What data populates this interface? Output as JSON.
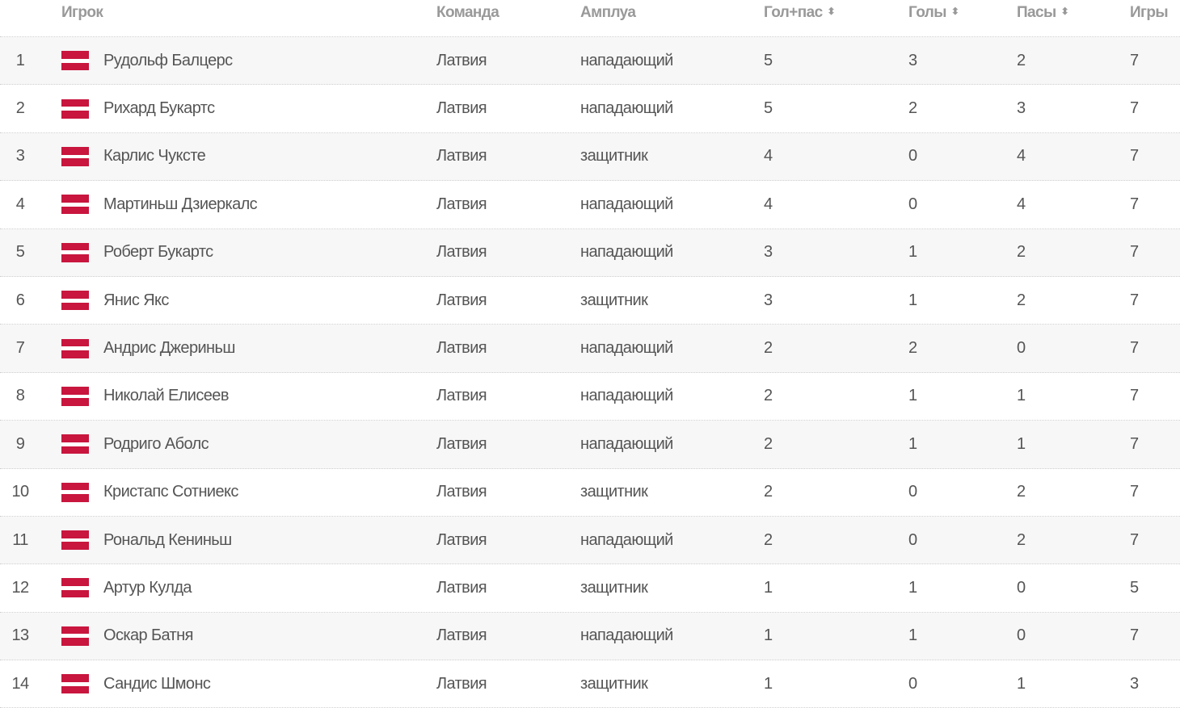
{
  "headers": {
    "player": "Игрок",
    "team": "Команда",
    "role": "Амплуа",
    "points": "Гол+пас",
    "goals": "Голы",
    "assists": "Пасы",
    "games": "Игры",
    "sort_icon": "sort-arrows-icon"
  },
  "colors": {
    "flag_red": "#c8163e",
    "flag_white": "#ffffff",
    "row_alt": "#f7f7f7"
  },
  "rows": [
    {
      "rank": "1",
      "name": "Рудольф Балцерс",
      "team": "Латвия",
      "role": "нападающий",
      "points": "5",
      "goals": "3",
      "assists": "2",
      "games": "7"
    },
    {
      "rank": "2",
      "name": "Рихард Букартс",
      "team": "Латвия",
      "role": "нападающий",
      "points": "5",
      "goals": "2",
      "assists": "3",
      "games": "7"
    },
    {
      "rank": "3",
      "name": "Карлис Чуксте",
      "team": "Латвия",
      "role": "защитник",
      "points": "4",
      "goals": "0",
      "assists": "4",
      "games": "7"
    },
    {
      "rank": "4",
      "name": "Мартиньш Дзиеркалс",
      "team": "Латвия",
      "role": "нападающий",
      "points": "4",
      "goals": "0",
      "assists": "4",
      "games": "7"
    },
    {
      "rank": "5",
      "name": "Роберт Букартс",
      "team": "Латвия",
      "role": "нападающий",
      "points": "3",
      "goals": "1",
      "assists": "2",
      "games": "7"
    },
    {
      "rank": "6",
      "name": "Янис Якс",
      "team": "Латвия",
      "role": "защитник",
      "points": "3",
      "goals": "1",
      "assists": "2",
      "games": "7"
    },
    {
      "rank": "7",
      "name": "Андрис Джериньш",
      "team": "Латвия",
      "role": "нападающий",
      "points": "2",
      "goals": "2",
      "assists": "0",
      "games": "7"
    },
    {
      "rank": "8",
      "name": "Николай Елисеев",
      "team": "Латвия",
      "role": "нападающий",
      "points": "2",
      "goals": "1",
      "assists": "1",
      "games": "7"
    },
    {
      "rank": "9",
      "name": "Родриго Аболс",
      "team": "Латвия",
      "role": "нападающий",
      "points": "2",
      "goals": "1",
      "assists": "1",
      "games": "7"
    },
    {
      "rank": "10",
      "name": "Кристапс Сотниекс",
      "team": "Латвия",
      "role": "защитник",
      "points": "2",
      "goals": "0",
      "assists": "2",
      "games": "7"
    },
    {
      "rank": "11",
      "name": "Рональд Кениньш",
      "team": "Латвия",
      "role": "нападающий",
      "points": "2",
      "goals": "0",
      "assists": "2",
      "games": "7"
    },
    {
      "rank": "12",
      "name": "Артур Кулда",
      "team": "Латвия",
      "role": "защитник",
      "points": "1",
      "goals": "1",
      "assists": "0",
      "games": "5"
    },
    {
      "rank": "13",
      "name": "Оскар Батня",
      "team": "Латвия",
      "role": "нападающий",
      "points": "1",
      "goals": "1",
      "assists": "0",
      "games": "7"
    },
    {
      "rank": "14",
      "name": "Сандис Шмонс",
      "team": "Латвия",
      "role": "защитник",
      "points": "1",
      "goals": "0",
      "assists": "1",
      "games": "3"
    }
  ]
}
